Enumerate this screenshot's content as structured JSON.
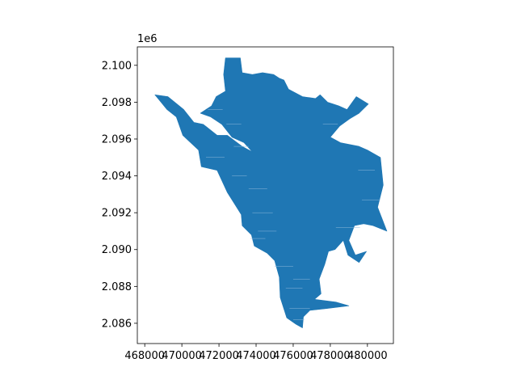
{
  "chart_data": {
    "type": "map",
    "title": "",
    "xlabel": "",
    "ylabel": "",
    "xlim": [
      467600,
      481400
    ],
    "ylim": [
      2084900,
      2101000
    ],
    "xticks": [
      468000,
      470000,
      472000,
      474000,
      476000,
      478000,
      480000
    ],
    "xtick_labels": [
      "468000",
      "470000",
      "472000",
      "474000",
      "476000",
      "478000",
      "480000"
    ],
    "yticks": [
      2086000,
      2088000,
      2090000,
      2092000,
      2094000,
      2096000,
      2098000,
      2100000
    ],
    "ytick_labels": [
      "2.086",
      "2.088",
      "2.090",
      "2.092",
      "2.094",
      "2.096",
      "2.098",
      "2.100"
    ],
    "y_offset_label": "1e6",
    "grid": false,
    "legend": "none",
    "colors": {
      "fill": "#1f77b4",
      "axes": "#000000",
      "background": "#ffffff"
    },
    "polygon": {
      "name": "region",
      "coordinates": [
        [
          472350,
          2100400
        ],
        [
          473150,
          2100400
        ],
        [
          473250,
          2099600
        ],
        [
          473800,
          2099500
        ],
        [
          474350,
          2099600
        ],
        [
          474950,
          2099500
        ],
        [
          475250,
          2099300
        ],
        [
          475500,
          2099200
        ],
        [
          475750,
          2098700
        ],
        [
          476500,
          2098300
        ],
        [
          477200,
          2098200
        ],
        [
          477450,
          2098400
        ],
        [
          477850,
          2098000
        ],
        [
          478450,
          2097800
        ],
        [
          478900,
          2097600
        ],
        [
          479400,
          2098300
        ],
        [
          480050,
          2097900
        ],
        [
          479550,
          2097400
        ],
        [
          479050,
          2097100
        ],
        [
          478500,
          2096700
        ],
        [
          478000,
          2096100
        ],
        [
          478550,
          2095800
        ],
        [
          479550,
          2095600
        ],
        [
          480000,
          2095400
        ],
        [
          480700,
          2095000
        ],
        [
          480850,
          2093500
        ],
        [
          480550,
          2092300
        ],
        [
          481050,
          2091000
        ],
        [
          480300,
          2091300
        ],
        [
          479800,
          2091400
        ],
        [
          479300,
          2091300
        ],
        [
          479000,
          2090500
        ],
        [
          479350,
          2089700
        ],
        [
          479950,
          2089900
        ],
        [
          479550,
          2089300
        ],
        [
          478950,
          2089700
        ],
        [
          478700,
          2090500
        ],
        [
          478250,
          2090000
        ],
        [
          477900,
          2089900
        ],
        [
          477700,
          2089200
        ],
        [
          477400,
          2088400
        ],
        [
          477500,
          2087600
        ],
        [
          477150,
          2087300
        ],
        [
          478300,
          2087150
        ],
        [
          479000,
          2086950
        ],
        [
          477800,
          2086800
        ],
        [
          476900,
          2086700
        ],
        [
          476550,
          2086350
        ],
        [
          476500,
          2085750
        ],
        [
          476150,
          2085950
        ],
        [
          475650,
          2086300
        ],
        [
          475300,
          2087400
        ],
        [
          475250,
          2088500
        ],
        [
          475000,
          2089400
        ],
        [
          474600,
          2089800
        ],
        [
          473900,
          2090200
        ],
        [
          473750,
          2090800
        ],
        [
          473250,
          2091300
        ],
        [
          473200,
          2091900
        ],
        [
          472450,
          2093100
        ],
        [
          471900,
          2094300
        ],
        [
          471050,
          2094500
        ],
        [
          470900,
          2095400
        ],
        [
          470050,
          2096200
        ],
        [
          469700,
          2097200
        ],
        [
          469200,
          2097600
        ],
        [
          468550,
          2098400
        ],
        [
          469250,
          2098300
        ],
        [
          470100,
          2097600
        ],
        [
          470650,
          2096900
        ],
        [
          471150,
          2096800
        ],
        [
          471900,
          2096200
        ],
        [
          472450,
          2096200
        ],
        [
          473250,
          2095600
        ],
        [
          473800,
          2095300
        ],
        [
          473350,
          2095800
        ],
        [
          472700,
          2096100
        ],
        [
          472150,
          2096800
        ],
        [
          471550,
          2097200
        ],
        [
          471000,
          2097400
        ],
        [
          471600,
          2097800
        ],
        [
          471850,
          2098300
        ],
        [
          472350,
          2098600
        ],
        [
          472250,
          2099500
        ]
      ]
    }
  }
}
